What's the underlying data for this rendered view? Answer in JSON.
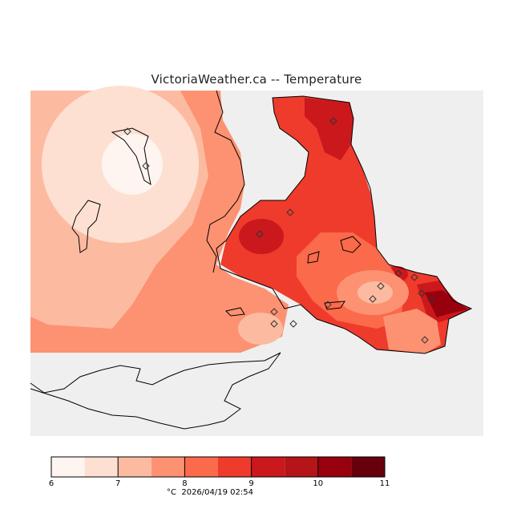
{
  "header": {
    "title": "VictoriaWeather.ca -- Temperature"
  },
  "legend": {
    "ticks": [
      "6",
      "7",
      "8",
      "9",
      "10",
      "11"
    ],
    "units": "°C",
    "timestamp": "2026/04/19 02:54",
    "colors": [
      "#fff5f0",
      "#fee0d2",
      "#fcbba1",
      "#fc9272",
      "#fb6a4a",
      "#ef3b2c",
      "#cb181d",
      "#b51519",
      "#99000d",
      "#67000d"
    ]
  },
  "map": {
    "background_color": "#efefef",
    "land_outline_color": "#000000",
    "station_count": 16
  }
}
